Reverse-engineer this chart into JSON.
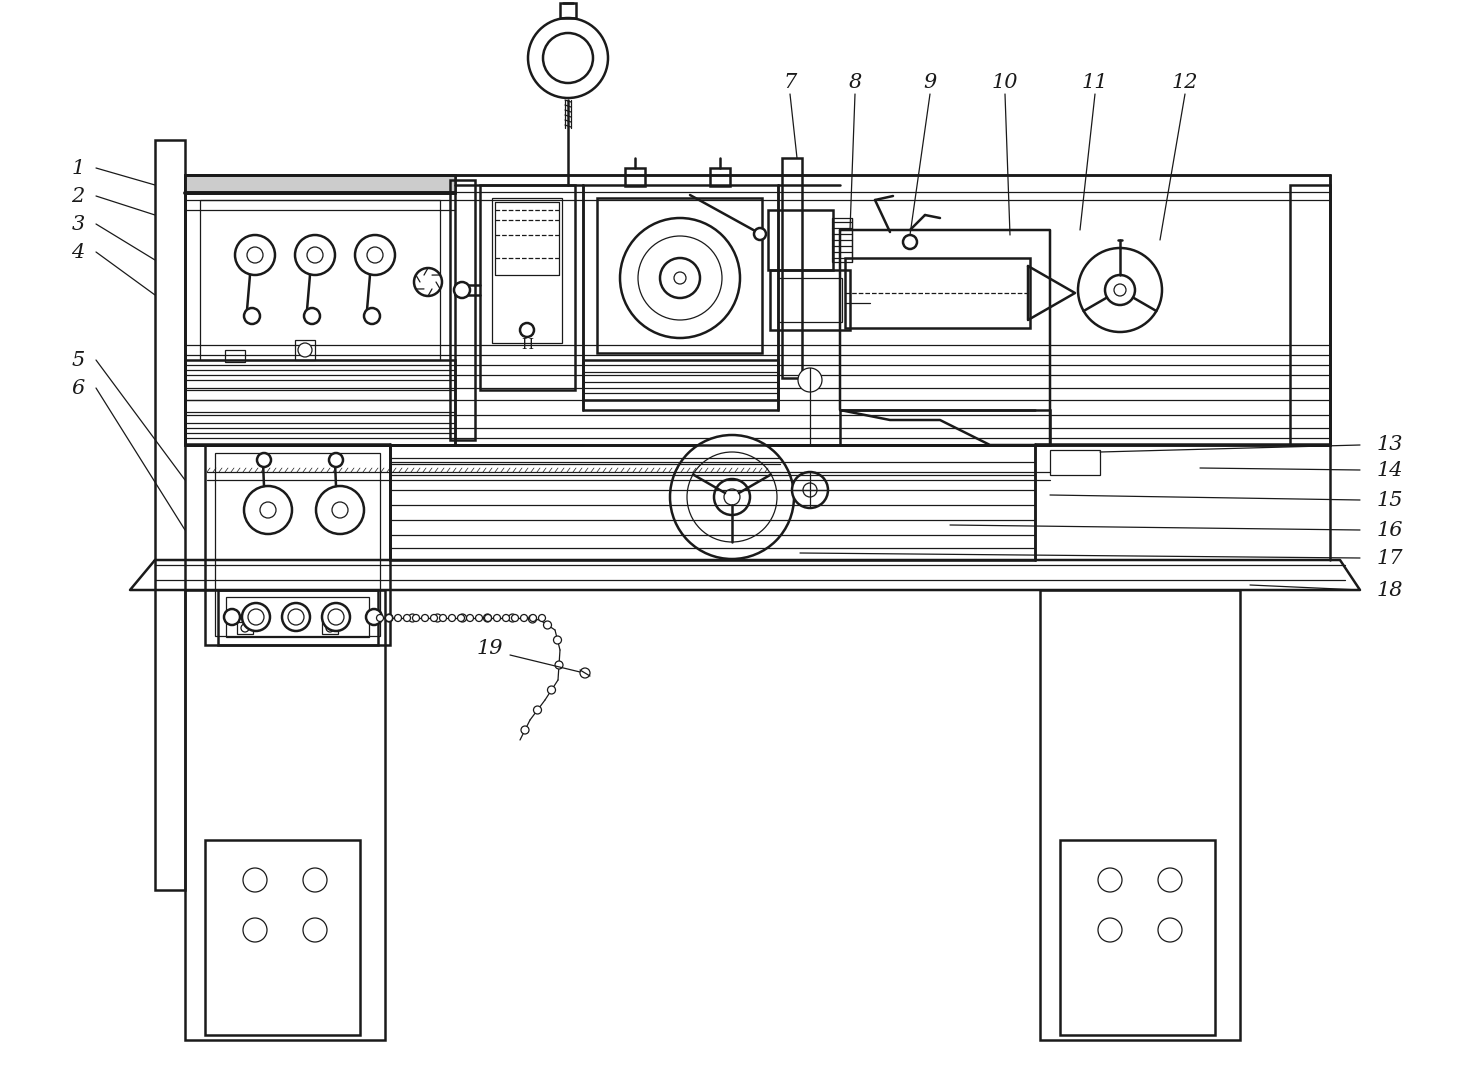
{
  "bg_color": "#ffffff",
  "line_color": "#1a1a1a",
  "lw": 1.8,
  "tlw": 0.9,
  "figsize": [
    14.74,
    10.72
  ],
  "dpi": 100
}
